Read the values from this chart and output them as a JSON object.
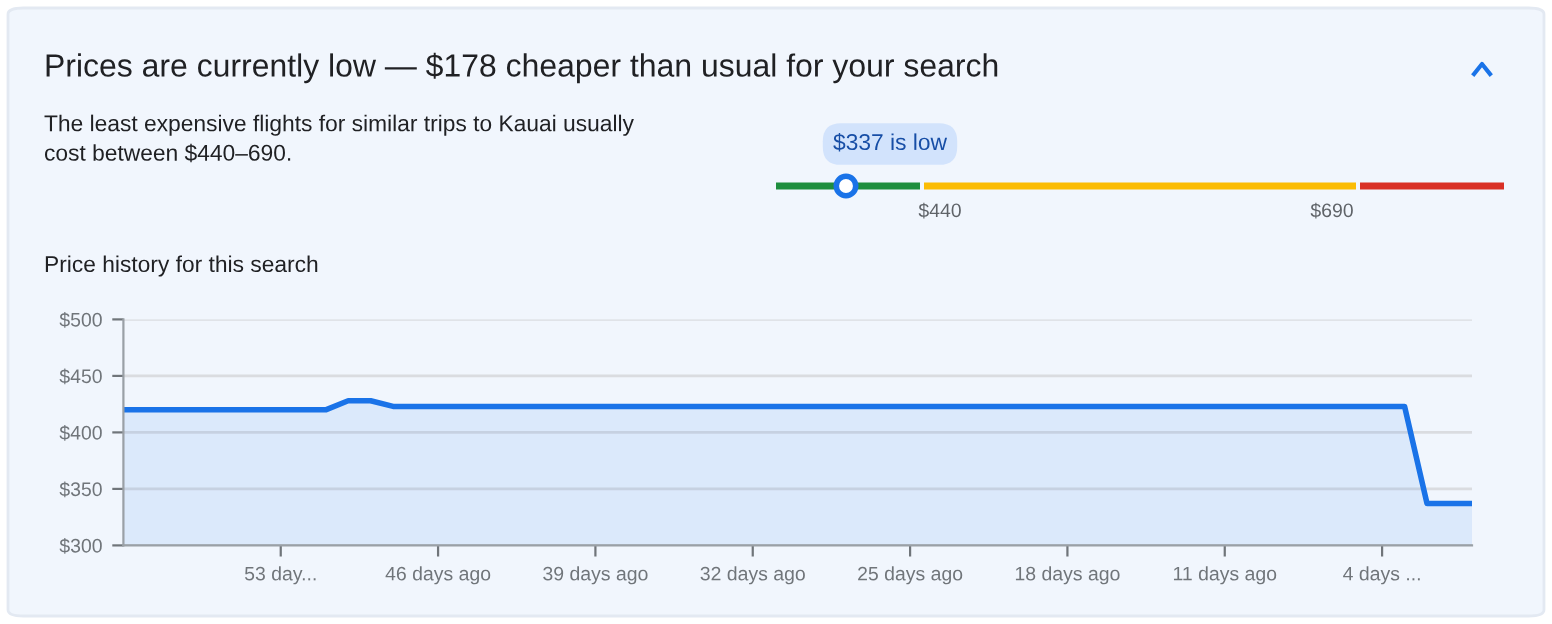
{
  "chart_data": [
    {
      "type": "other",
      "title": "Prices are currently low — $178 cheaper than usual for your search",
      "subtitle": "The least expensive flights for similar trips to Kauai usually\ncost between $440–690.",
      "annotations": [
        "$337 is low",
        "$440",
        "$690"
      ]
    },
    {
      "type": "area",
      "title": "Price history for this search",
      "color": "#1a73e8",
      "x": [
        60,
        51,
        50,
        49,
        48,
        3,
        2,
        0
      ],
      "values": [
        420,
        420,
        428,
        428,
        423,
        423,
        337,
        337
      ],
      "xlim": [
        60,
        0
      ],
      "xticks": [
        {
          "value": 53,
          "label": "53 day..."
        },
        {
          "value": 46,
          "label": "46 days ago"
        },
        {
          "value": 39,
          "label": "39 days ago"
        },
        {
          "value": 32,
          "label": "32 days ago"
        },
        {
          "value": 25,
          "label": "25 days ago"
        },
        {
          "value": 18,
          "label": "18 days ago"
        },
        {
          "value": 11,
          "label": "11 days ago"
        },
        {
          "value": 4,
          "label": "4 days ..."
        }
      ],
      "ylim": [
        300,
        500
      ],
      "yticks": [
        {
          "value": 300,
          "label": "$300"
        },
        {
          "value": 350,
          "label": "$350"
        },
        {
          "value": 400,
          "label": "$400"
        },
        {
          "value": 450,
          "label": "$450"
        },
        {
          "value": 500,
          "label": "$500"
        }
      ],
      "grid": "y",
      "legend": false
    }
  ]
}
